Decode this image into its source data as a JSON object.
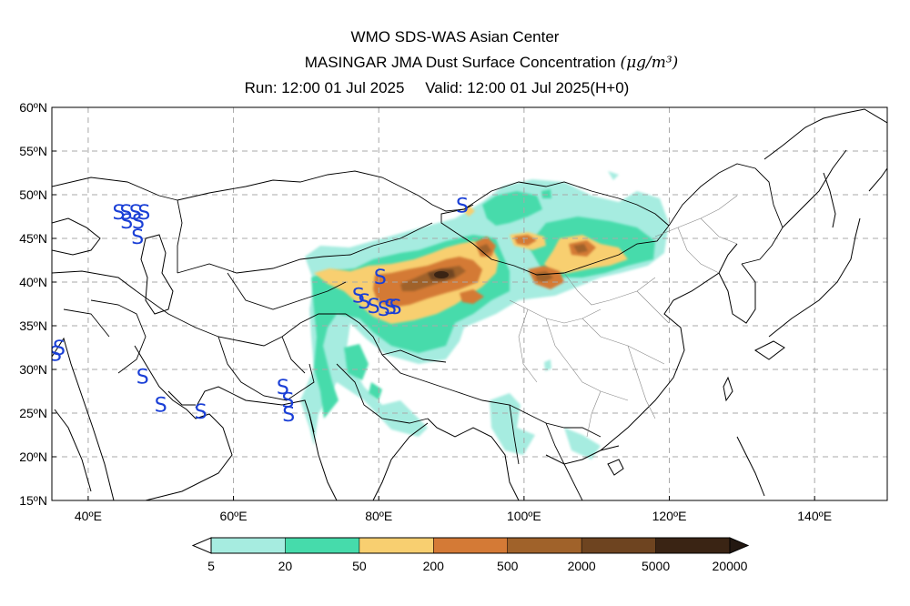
{
  "header": {
    "title": "WMO SDS-WAS Asian Center",
    "subtitle": "MASINGAR JMA Dust Surface Concentration",
    "unit": "(μg/m³)",
    "run_label": "Run: 12:00 01 Jul 2025",
    "valid_label": "Valid: 12:00 01 Jul 2025(H+0)"
  },
  "axes": {
    "lat_labels": [
      "60ºN",
      "55ºN",
      "50ºN",
      "45ºN",
      "40ºN",
      "35ºN",
      "30ºN",
      "25ºN",
      "20ºN",
      "15ºN"
    ],
    "lon_labels": [
      "40ºE",
      "60ºE",
      "80ºE",
      "100ºE",
      "120ºE",
      "140ºE"
    ],
    "lat_values": [
      60,
      55,
      50,
      45,
      40,
      35,
      30,
      25,
      20,
      15
    ],
    "lon_values": [
      40,
      60,
      80,
      100,
      120,
      140
    ],
    "lon_range": [
      35,
      150
    ],
    "lat_range": [
      15,
      60
    ],
    "grid": true
  },
  "colorbar": {
    "boundaries": [
      "5",
      "20",
      "50",
      "200",
      "500",
      "2000",
      "5000",
      "20000"
    ],
    "colors": [
      "#a6ece0",
      "#46dbab",
      "#f8cf70",
      "#d47a36",
      "#a0622a",
      "#6e4420",
      "#3a2414"
    ],
    "under_color": "#ffffff",
    "over_color": "#231811"
  },
  "markers": {
    "symbol": "S",
    "color": "#1a3fd6",
    "stations": [
      {
        "lon": 44.2,
        "lat": 48.0
      },
      {
        "lon": 45.2,
        "lat": 48.0
      },
      {
        "lon": 46.5,
        "lat": 48.0
      },
      {
        "lon": 47.7,
        "lat": 48.0
      },
      {
        "lon": 45.3,
        "lat": 47.0
      },
      {
        "lon": 46.9,
        "lat": 47.0
      },
      {
        "lon": 46.8,
        "lat": 45.2
      },
      {
        "lon": 35.5,
        "lat": 31.8
      },
      {
        "lon": 36.0,
        "lat": 32.5
      },
      {
        "lon": 47.5,
        "lat": 29.2
      },
      {
        "lon": 50.0,
        "lat": 26.0
      },
      {
        "lon": 55.5,
        "lat": 25.2
      },
      {
        "lon": 66.8,
        "lat": 28.0
      },
      {
        "lon": 67.5,
        "lat": 26.5
      },
      {
        "lon": 67.6,
        "lat": 24.9
      },
      {
        "lon": 91.5,
        "lat": 48.8
      },
      {
        "lon": 80.2,
        "lat": 40.6
      },
      {
        "lon": 77.2,
        "lat": 38.5
      },
      {
        "lon": 78.0,
        "lat": 37.8
      },
      {
        "lon": 79.3,
        "lat": 37.3
      },
      {
        "lon": 80.7,
        "lat": 37.0
      },
      {
        "lon": 81.6,
        "lat": 37.2
      },
      {
        "lon": 82.3,
        "lat": 37.2
      }
    ]
  }
}
